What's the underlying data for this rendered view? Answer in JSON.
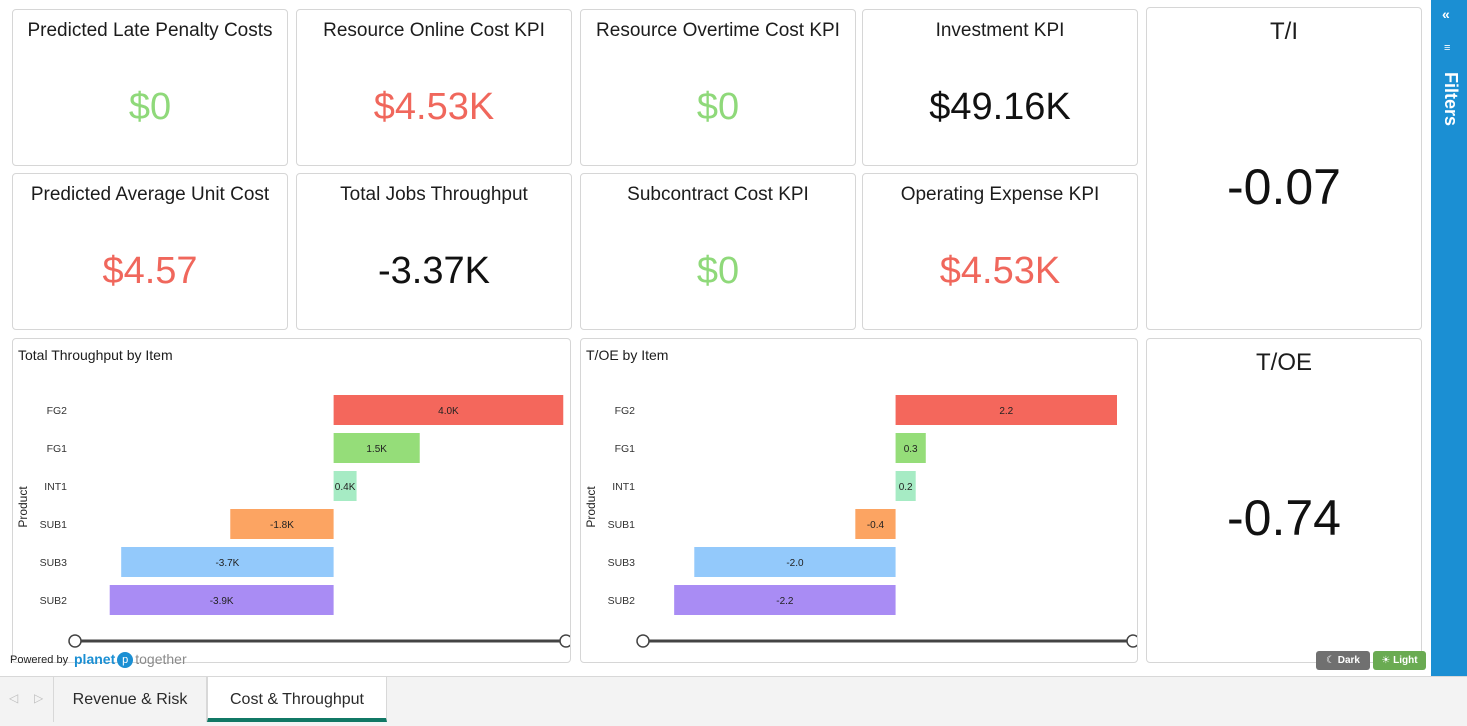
{
  "kpis": [
    {
      "title": "Predicted Late Penalty Costs",
      "value": "$0",
      "color": "#8fd97a"
    },
    {
      "title": "Resource Online Cost KPI",
      "value": "$4.53K",
      "color": "#f0675c"
    },
    {
      "title": "Resource Overtime Cost KPI",
      "value": "$0",
      "color": "#8fd97a"
    },
    {
      "title": "Investment KPI",
      "value": "$49.16K",
      "color": "#111111"
    },
    {
      "title": "Predicted Average Unit Cost",
      "value": "$4.57",
      "color": "#f0675c"
    },
    {
      "title": "Total Jobs Throughput",
      "value": "-3.37K",
      "color": "#111111"
    },
    {
      "title": "Subcontract Cost KPI",
      "value": "$0",
      "color": "#8fd97a"
    },
    {
      "title": "Operating Expense KPI",
      "value": "$4.53K",
      "color": "#f0675c"
    }
  ],
  "ti": {
    "title": "T/I",
    "value": "-0.07"
  },
  "toe": {
    "title": "T/OE",
    "value": "-0.74"
  },
  "chart_data": [
    {
      "type": "bar",
      "orientation": "horizontal",
      "title": "Total Throughput by Item",
      "ylabel": "Product",
      "xlabel": "",
      "categories": [
        "FG2",
        "FG1",
        "INT1",
        "SUB1",
        "SUB3",
        "SUB2"
      ],
      "values": [
        4.0,
        1.5,
        0.4,
        -1.8,
        -3.7,
        -3.9
      ],
      "labels": [
        "4.0K",
        "1.5K",
        "0.4K",
        "-1.8K",
        "-3.7K",
        "-3.9K"
      ],
      "colors": [
        "#f4675c",
        "#95dd79",
        "#a6ebc4",
        "#fca462",
        "#93c9fb",
        "#a98cf4"
      ],
      "xlim": [
        -4.4,
        4.1
      ],
      "grid": false,
      "legend": "none"
    },
    {
      "type": "bar",
      "orientation": "horizontal",
      "title": "T/OE by Item",
      "ylabel": "Product",
      "xlabel": "",
      "categories": [
        "FG2",
        "FG1",
        "INT1",
        "SUB1",
        "SUB3",
        "SUB2"
      ],
      "values": [
        2.2,
        0.3,
        0.2,
        -0.4,
        -2.0,
        -2.2
      ],
      "labels": [
        "2.2",
        "0.3",
        "0.2",
        "-0.4",
        "-2.0",
        "-2.2"
      ],
      "colors": [
        "#f4675c",
        "#95dd79",
        "#a6ebc4",
        "#fca462",
        "#93c9fb",
        "#a98cf4"
      ],
      "xlim": [
        -2.45,
        2.2
      ],
      "grid": false,
      "legend": "none"
    }
  ],
  "filters": {
    "label": "Filters",
    "collapse_icon": "double-chevron-left-icon",
    "filter_icon": "filter-icon"
  },
  "branding": {
    "powered": "Powered by",
    "planet": "planet",
    "together": "together",
    "logo_mark": "p"
  },
  "theme": {
    "dark": "Dark",
    "light": "Light",
    "dark_color": "#707070",
    "light_color": "#6aab52"
  },
  "tabs": [
    {
      "label": "Revenue & Risk",
      "active": false
    },
    {
      "label": "Cost & Throughput",
      "active": true
    }
  ],
  "nav": {
    "prev": "◁",
    "next": "▷"
  }
}
